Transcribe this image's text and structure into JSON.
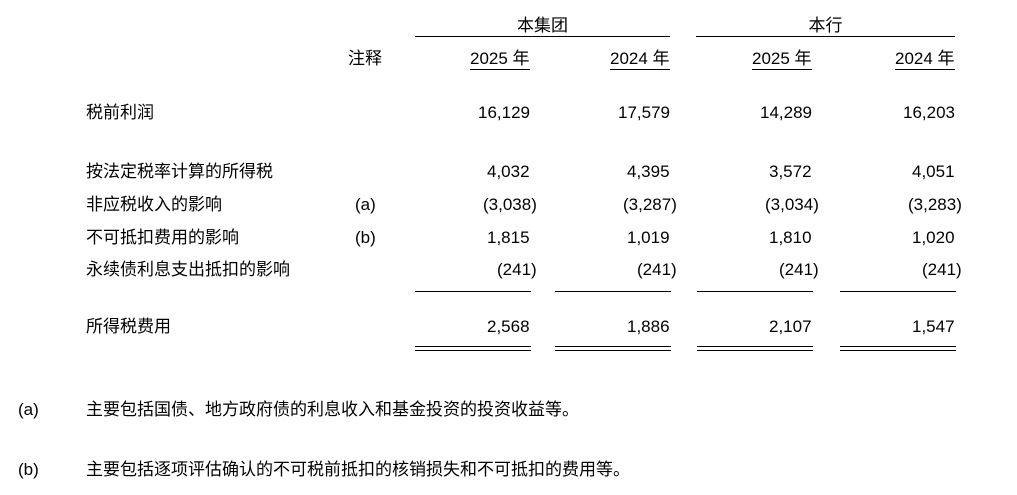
{
  "table": {
    "group_header": "本集团",
    "bank_header": "本行",
    "note_header": "注释",
    "years": [
      "2025 年",
      "2024 年",
      "2025 年",
      "2024 年"
    ],
    "rows": [
      {
        "label": "税前利润",
        "values": [
          "16,129",
          "17,579",
          "14,289",
          "16,203"
        ]
      },
      {
        "label": "按法定税率计算的所得税",
        "values": [
          "4,032",
          "4,395",
          "3,572",
          "4,051"
        ]
      },
      {
        "label": "非应税收入的影响",
        "note": "(a)",
        "values": [
          "(3,038)",
          "(3,287)",
          "(3,034)",
          "(3,283)"
        ]
      },
      {
        "label": "不可抵扣费用的影响",
        "note": "(b)",
        "values": [
          "1,815",
          "1,019",
          "1,810",
          "1,020"
        ]
      },
      {
        "label": "永续债利息支出抵扣的影响",
        "values": [
          "(241)",
          "(241)",
          "(241)",
          "(241)"
        ]
      },
      {
        "label": "所得税费用",
        "values": [
          "2,568",
          "1,886",
          "2,107",
          "1,547"
        ]
      }
    ]
  },
  "footnotes": [
    {
      "marker": "(a)",
      "text": "主要包括国债、地方政府债的利息收入和基金投资的投资收益等。"
    },
    {
      "marker": "(b)",
      "text": "主要包括逐项评估确认的不可税前抵扣的核销损失和不可抵扣的费用等。"
    }
  ]
}
